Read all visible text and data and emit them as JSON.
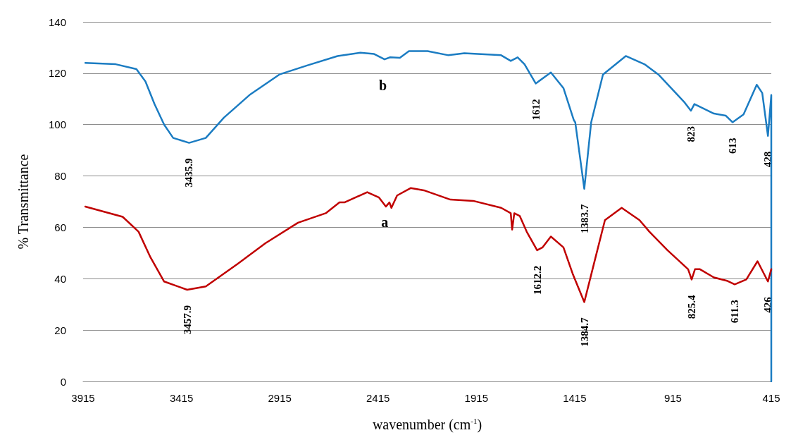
{
  "chart_data": {
    "type": "line",
    "xlabel": "wavenumber (cm$^{-1}$)",
    "ylabel": "% Transmittance",
    "xlim": [
      3915,
      415
    ],
    "xticks": [
      3915,
      3415,
      2915,
      2415,
      1915,
      1415,
      915,
      415
    ],
    "ylim": [
      0,
      140
    ],
    "yticks": [
      0,
      20,
      40,
      60,
      80,
      100,
      120,
      140
    ],
    "grid": "y",
    "legend": false,
    "marker": "none",
    "line_style": "solid",
    "series": [
      {
        "name": "b",
        "color": "#1b7cc2",
        "x": [
          3904,
          3749,
          3644,
          3598,
          3552,
          3503,
          3457,
          3376,
          3291,
          3199,
          3069,
          2917,
          2776,
          2621,
          2505,
          2435,
          2382,
          2353,
          2304,
          2258,
          2163,
          2057,
          1976,
          1789,
          1740,
          1705,
          1670,
          1613,
          1536,
          1472,
          1419,
          1412,
          1366,
          1331,
          1271,
          1155,
          1060,
          989,
          859,
          824,
          806,
          707,
          647,
          612,
          556,
          489,
          461,
          432,
          415,
          415
        ],
        "values": [
          124,
          123.5,
          121.6,
          116.8,
          108,
          100,
          94.8,
          92.9,
          94.8,
          102.7,
          111.5,
          119.5,
          123,
          126.7,
          128,
          127.5,
          125.4,
          126.2,
          126,
          128.6,
          128.6,
          127,
          127.8,
          127,
          124.8,
          126.2,
          123.5,
          116,
          120.3,
          114.2,
          101.7,
          100.9,
          75,
          100.9,
          119.5,
          126.7,
          123.5,
          119.5,
          108.9,
          105.4,
          108,
          104.3,
          103.5,
          100.9,
          104,
          115.5,
          112.3,
          95.6,
          111.5,
          0
        ]
      },
      {
        "name": "a",
        "color": "#c00000",
        "x": [
          3904,
          3714,
          3633,
          3573,
          3503,
          3386,
          3291,
          3129,
          2988,
          2822,
          2681,
          2611,
          2586,
          2470,
          2410,
          2375,
          2357,
          2347,
          2318,
          2248,
          2177,
          2047,
          1931,
          1789,
          1740,
          1733,
          1722,
          1694,
          1659,
          1606,
          1578,
          1536,
          1472,
          1423,
          1366,
          1317,
          1261,
          1176,
          1085,
          1035,
          943,
          838,
          820,
          803,
          778,
          707,
          637,
          601,
          542,
          485,
          432,
          415
        ],
        "values": [
          68.1,
          64.1,
          58.3,
          48.4,
          38.9,
          35.7,
          37,
          45.8,
          53.8,
          61.8,
          65.5,
          69.7,
          69.7,
          73.7,
          71.6,
          68.1,
          69.7,
          67.6,
          72.4,
          75.3,
          74.3,
          70.8,
          70.3,
          67.6,
          65.5,
          59.1,
          65.5,
          64.4,
          58.3,
          51.1,
          52.2,
          56.4,
          52.2,
          41.5,
          30.9,
          45.8,
          62.8,
          67.6,
          62.8,
          58.3,
          51.1,
          43.7,
          39.7,
          43.7,
          43.7,
          40.5,
          39.1,
          37.8,
          39.7,
          46.8,
          38.9,
          43.7
        ]
      }
    ],
    "annotations": [
      {
        "text": "3435.9",
        "x": 3376,
        "y": 92.9
      },
      {
        "text": "1612",
        "x": 1613,
        "y": 116
      },
      {
        "text": "1383.7",
        "x": 1366,
        "y": 75
      },
      {
        "text": "823",
        "x": 824,
        "y": 105.4
      },
      {
        "text": "613",
        "x": 612,
        "y": 100.9
      },
      {
        "text": "428",
        "x": 432,
        "y": 95.6
      },
      {
        "text": "3457.9",
        "x": 3386,
        "y": 35.7
      },
      {
        "text": "1612.2",
        "x": 1606,
        "y": 51.1
      },
      {
        "text": "1384.7",
        "x": 1366,
        "y": 30.9
      },
      {
        "text": "825.4",
        "x": 820,
        "y": 39.7
      },
      {
        "text": "611.3",
        "x": 601,
        "y": 37.8
      },
      {
        "text": "426",
        "x": 432,
        "y": 38.9
      }
    ]
  }
}
